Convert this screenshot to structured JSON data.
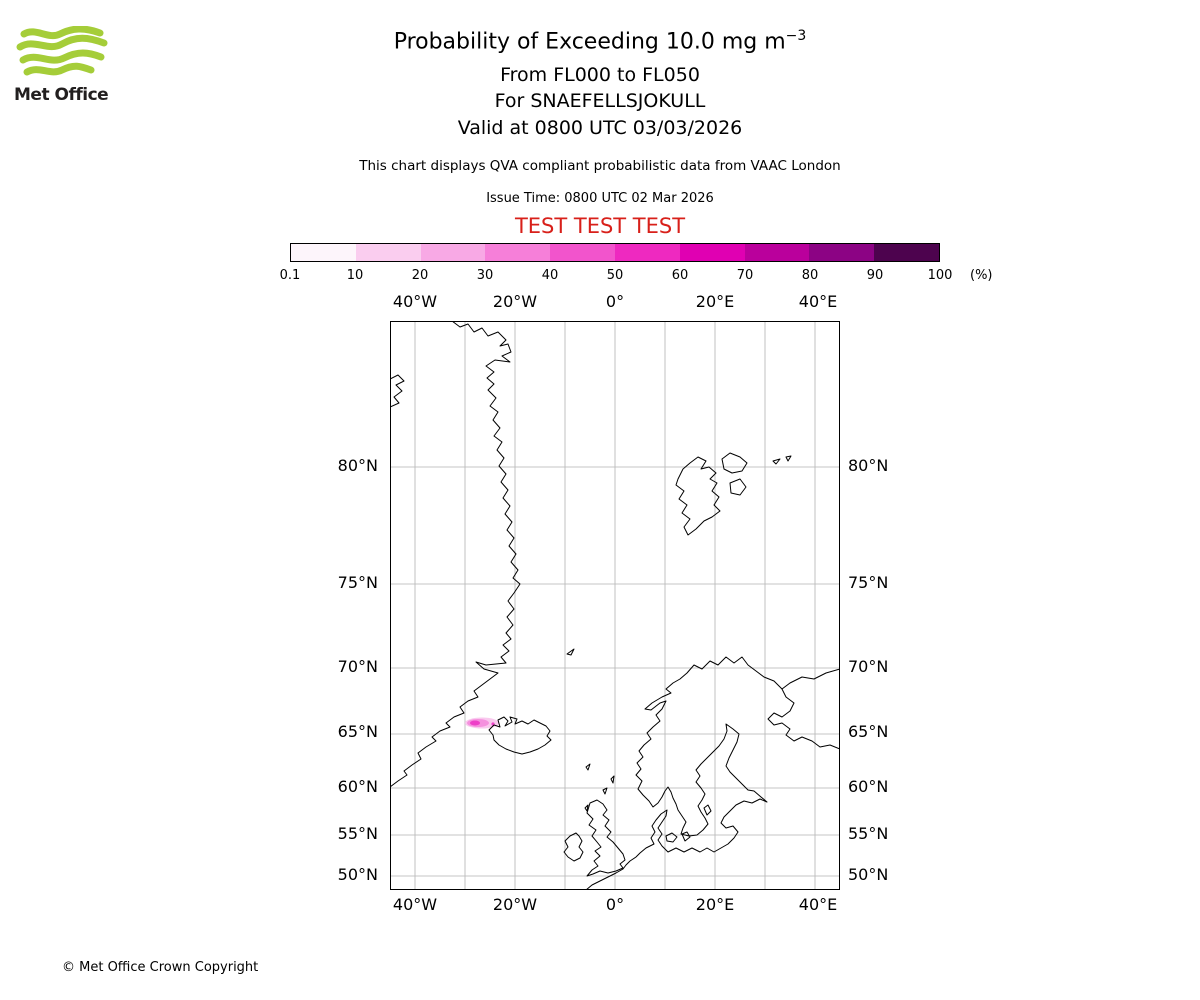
{
  "logo": {
    "text": "Met Office",
    "brand_green": "#a5cd39"
  },
  "header": {
    "title_prefix": "Probability of Exceeding 10.0 mg m",
    "title_exponent": "−3",
    "flight_levels": "From FL000 to FL050",
    "volcano": "For SNAEFELLSJOKULL",
    "valid_time": "Valid at 0800 UTC 03/03/2026",
    "description": "This chart displays QVA compliant probabilistic data from VAAC London",
    "issue_time": "Issue Time: 0800 UTC 02 Mar 2026",
    "test_watermark": "TEST TEST TEST",
    "test_color": "#d8201a"
  },
  "colorbar": {
    "unit_label": "(%)",
    "tick_labels": [
      "0.1",
      "10",
      "20",
      "30",
      "40",
      "50",
      "60",
      "70",
      "80",
      "90",
      "100"
    ],
    "segment_colors": [
      "#fdf5fb",
      "#facdef",
      "#f8a9e5",
      "#f67fd9",
      "#f254cc",
      "#ee29c0",
      "#e000b2",
      "#ba009c",
      "#8c0384",
      "#4d034e"
    ]
  },
  "map": {
    "lon_labels_top": [
      "40°W",
      "20°W",
      "0°",
      "20°E",
      "40°E"
    ],
    "lon_labels_bottom": [
      "40°W",
      "20°W",
      "0°",
      "20°E",
      "40°E"
    ],
    "lat_labels_left": [
      "80°N",
      "75°N",
      "70°N",
      "65°N",
      "60°N",
      "55°N",
      "50°N"
    ],
    "lat_labels_right": [
      "80°N",
      "75°N",
      "70°N",
      "65°N",
      "60°N",
      "55°N",
      "50°N"
    ],
    "overlay": {
      "colors": [
        "#f9c9ee",
        "#f590de",
        "#ee3fc8"
      ]
    }
  },
  "chart_data": {
    "type": "heatmap",
    "title": "Probability of Exceeding 10.0 mg m−3",
    "subtitle": [
      "From FL000 to FL050",
      "For SNAEFELLSJOKULL",
      "Valid at 0800 UTC 03/03/2026"
    ],
    "colorbar_ticks_percent": [
      0.1,
      10,
      20,
      30,
      40,
      50,
      60,
      70,
      80,
      90,
      100
    ],
    "colorbar_unit": "%",
    "x_tick_labels": [
      "40°W",
      "20°W",
      "0°",
      "20°E",
      "40°E"
    ],
    "y_tick_labels": [
      "80°N",
      "75°N",
      "70°N",
      "65°N",
      "60°N",
      "55°N",
      "50°N"
    ],
    "map_extent_lon": [
      -45,
      45
    ],
    "map_extent_lat": [
      48.5,
      84
    ],
    "probability_region": {
      "description": "small low-probability patch just west of Iceland",
      "approx_center_lat": 66,
      "approx_center_lon": -28,
      "approx_max_percent": 40
    }
  },
  "footer": {
    "copyright": "© Met Office Crown Copyright"
  }
}
